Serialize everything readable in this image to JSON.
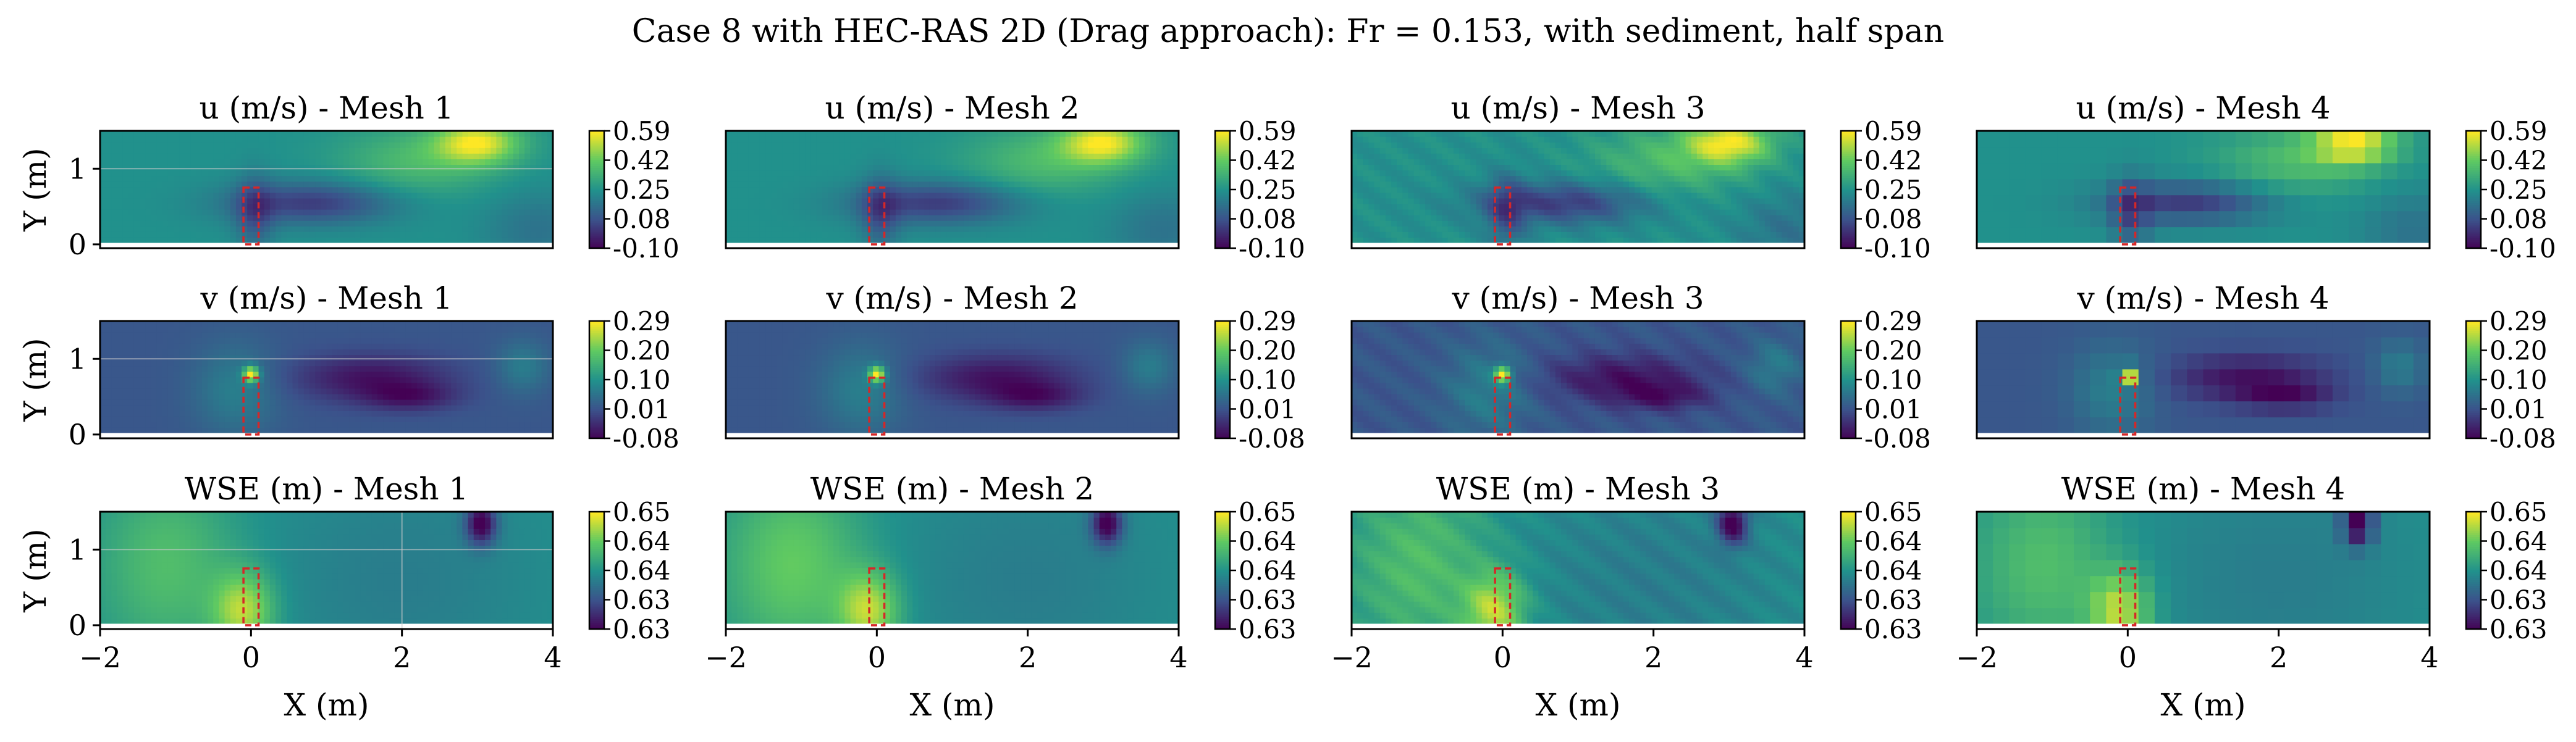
{
  "figure": {
    "title": "Case 8 with HEC-RAS 2D (Drag approach): Fr = 0.153, with sediment, half span"
  },
  "chart_data": {
    "type": "heatmap",
    "title": "Case 8 with HEC-RAS 2D (Drag approach): Fr = 0.153, with sediment, half span",
    "xlabel": "X (m)",
    "ylabel": "Y (m)",
    "xlim": [
      -2,
      4
    ],
    "ylim": [
      -0.05,
      1.5
    ],
    "x_ticks": [
      "−2",
      "0",
      "2",
      "4"
    ],
    "y_ticks": [
      "0",
      "1"
    ],
    "obstacle": {
      "x": [
        -0.1,
        0.1
      ],
      "y": [
        0,
        0.75
      ],
      "style": "dashed",
      "color": "#d62728"
    },
    "colormap": [
      "#440154",
      "#3b528b",
      "#21918c",
      "#5ec962",
      "#fde725"
    ],
    "meshes": [
      {
        "label": "Mesh 1",
        "grid": 40,
        "gridlines": true
      },
      {
        "label": "Mesh 2",
        "grid": 40,
        "gridlines": false
      },
      {
        "label": "Mesh 3",
        "grid": 40,
        "gridlines": false
      },
      {
        "label": "Mesh 4",
        "grid": 14,
        "gridlines": false
      }
    ],
    "variables": [
      {
        "name": "u",
        "unit": "(m/s)",
        "label": "u (m/s)",
        "vmin": -0.1,
        "vmax": 0.59,
        "cbar_ticks": [
          "0.59",
          "0.42",
          "0.25",
          "0.08",
          "-0.10"
        ]
      },
      {
        "name": "v",
        "unit": "(m/s)",
        "label": "v (m/s)",
        "vmin": -0.08,
        "vmax": 0.29,
        "cbar_ticks": [
          "0.29",
          "0.20",
          "0.10",
          "0.01",
          "-0.08"
        ]
      },
      {
        "name": "WSE",
        "unit": "(m)",
        "label": "WSE (m)",
        "vmin": 0.63,
        "vmax": 0.65,
        "cbar_ticks": [
          "0.65",
          "0.64",
          "0.64",
          "0.63",
          "0.63"
        ]
      }
    ],
    "panels": [
      {
        "title": "u (m/s) - Mesh 1",
        "var": 0,
        "mesh": 0
      },
      {
        "title": "u (m/s) - Mesh 2",
        "var": 0,
        "mesh": 1
      },
      {
        "title": "u (m/s) - Mesh 3",
        "var": 0,
        "mesh": 2
      },
      {
        "title": "u (m/s) - Mesh 4",
        "var": 0,
        "mesh": 3
      },
      {
        "title": "v (m/s) - Mesh 1",
        "var": 1,
        "mesh": 0
      },
      {
        "title": "v (m/s) - Mesh 2",
        "var": 1,
        "mesh": 1
      },
      {
        "title": "v (m/s) - Mesh 3",
        "var": 1,
        "mesh": 2
      },
      {
        "title": "v (m/s) - Mesh 4",
        "var": 1,
        "mesh": 3
      },
      {
        "title": "WSE (m) - Mesh 1",
        "var": 2,
        "mesh": 0
      },
      {
        "title": "WSE (m) - Mesh 2",
        "var": 2,
        "mesh": 1
      },
      {
        "title": "WSE (m) - Mesh 3",
        "var": 2,
        "mesh": 2
      },
      {
        "title": "WSE (m) - Mesh 4",
        "var": 2,
        "mesh": 3
      }
    ]
  }
}
